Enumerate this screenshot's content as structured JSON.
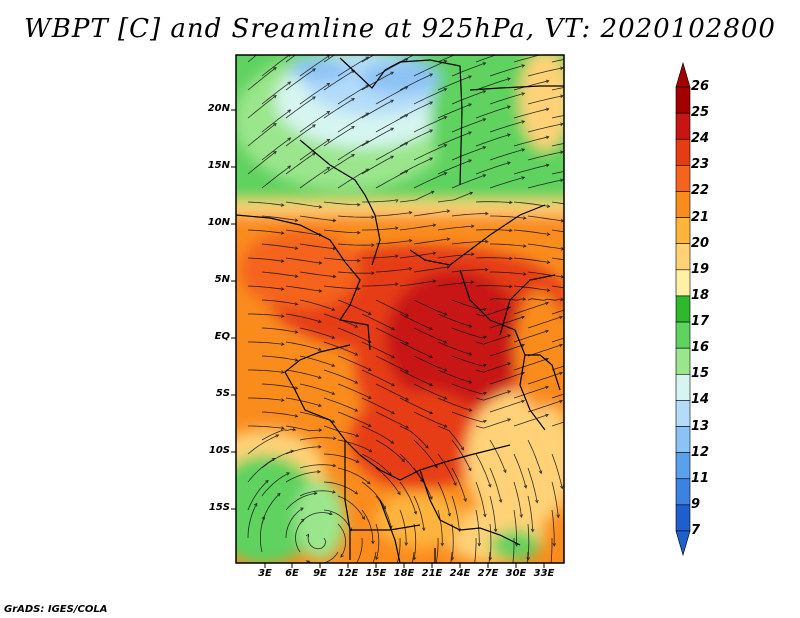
{
  "title": "WBPT [C] and Sreamline at 925hPa, VT: 2020102800",
  "credit": "GrADS: IGES/COLA",
  "map": {
    "lat_labels": [
      "20N",
      "15N",
      "10N",
      "5N",
      "EQ",
      "5S",
      "10S",
      "15S"
    ],
    "lon_labels": [
      "3E",
      "6E",
      "9E",
      "12E",
      "15E",
      "18E",
      "21E",
      "24E",
      "27E",
      "30E",
      "33E"
    ]
  },
  "colorbar": {
    "labels": [
      "26",
      "25",
      "24",
      "23",
      "22",
      "21",
      "20",
      "19",
      "18",
      "17",
      "16",
      "15",
      "14",
      "13",
      "12",
      "11",
      "9",
      "7"
    ],
    "colors": [
      "#a50000",
      "#c81414",
      "#e63c14",
      "#f5641e",
      "#fa8c1e",
      "#ffb43c",
      "#ffd278",
      "#fff0a8",
      "#2eb82e",
      "#5fd25f",
      "#9be68c",
      "#d6f5f0",
      "#b4dcfa",
      "#8cc3f5",
      "#5aa0eb",
      "#3c82e1",
      "#1e5fcd"
    ],
    "top_color": "#a50000",
    "bottom_color": "#1e5fcd"
  }
}
